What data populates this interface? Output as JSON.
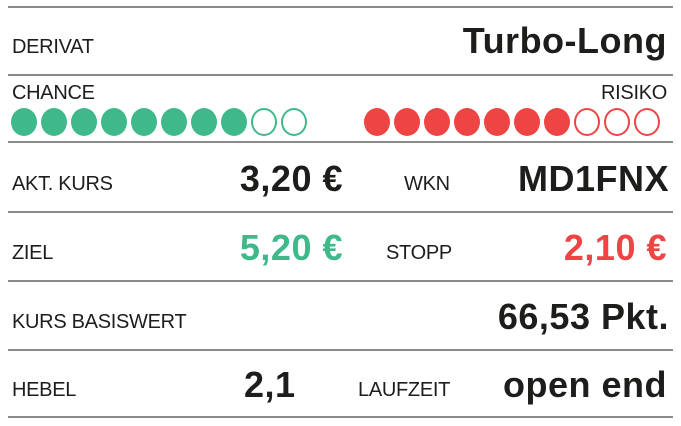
{
  "derivat": {
    "label": "DERIVAT",
    "value": "Turbo-Long"
  },
  "chance": {
    "label": "CHANCE",
    "filled": 8,
    "total": 10,
    "color": "#3fb98a"
  },
  "risiko": {
    "label": "RISIKO",
    "filled": 7,
    "total": 10,
    "color": "#ee4444"
  },
  "akt_kurs": {
    "label": "AKT. KURS",
    "value": "3,20 €"
  },
  "wkn": {
    "label": "WKN",
    "value": "MD1FNX"
  },
  "ziel": {
    "label": "ZIEL",
    "value": "5,20 €"
  },
  "stopp": {
    "label": "STOPP",
    "value": "2,10 €"
  },
  "kurs_basiswert": {
    "label": "KURS BASISWERT",
    "value": "66,53 Pkt."
  },
  "hebel": {
    "label": "HEBEL",
    "value": "2,1"
  },
  "laufzeit": {
    "label": "LAUFZEIT",
    "value": "open end"
  }
}
